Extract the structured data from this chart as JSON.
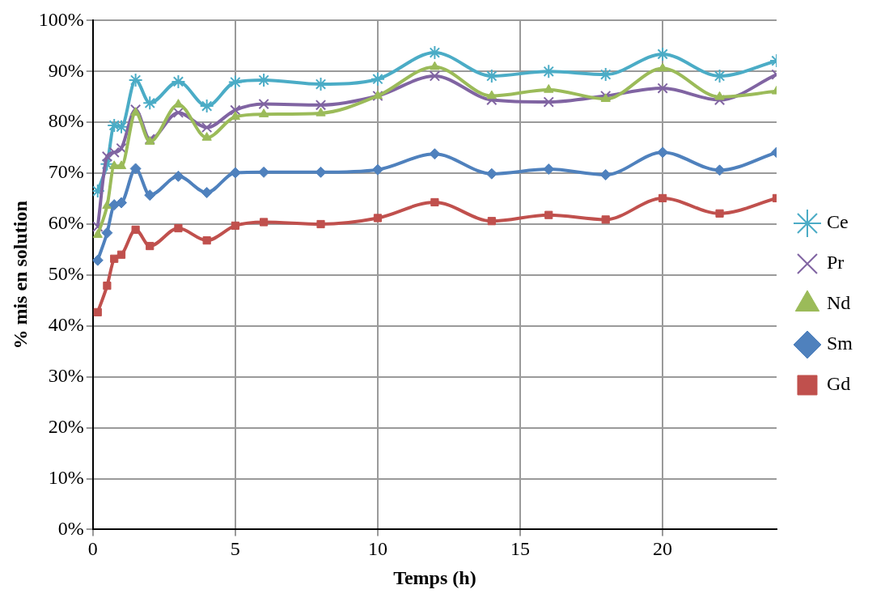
{
  "chart_data": {
    "type": "line",
    "xlabel": "Temps (h)",
    "ylabel": "% mis en solution",
    "x": [
      0.17,
      0.5,
      0.75,
      1,
      1.5,
      2,
      3,
      4,
      5,
      6,
      8,
      10,
      12,
      14,
      16,
      18,
      20,
      22,
      24
    ],
    "xlim": [
      0,
      24
    ],
    "xticks": [
      0,
      5,
      10,
      15,
      20
    ],
    "ylim": [
      0,
      100
    ],
    "yticks": [
      {
        "value": 0,
        "label": "0%"
      },
      {
        "value": 10,
        "label": "10%"
      },
      {
        "value": 20,
        "label": "20%"
      },
      {
        "value": 30,
        "label": "30%"
      },
      {
        "value": 40,
        "label": "40%"
      },
      {
        "value": 50,
        "label": "50%"
      },
      {
        "value": 60,
        "label": "60%"
      },
      {
        "value": 70,
        "label": "70%"
      },
      {
        "value": 80,
        "label": "80%"
      },
      {
        "value": 90,
        "label": "90%"
      },
      {
        "value": 100,
        "label": "100%"
      }
    ],
    "grid": true,
    "legend": "right",
    "series": [
      {
        "name": "Ce",
        "color": "#4bacc6",
        "marker": "cross",
        "values": [
          66.5,
          71.8,
          79.4,
          79.1,
          88.3,
          83.8,
          88.0,
          83.2,
          87.9,
          88.3,
          87.5,
          88.5,
          93.7,
          89.1,
          90.0,
          89.4,
          93.4,
          89.1,
          92.1
        ]
      },
      {
        "name": "Pr",
        "color": "#8064a2",
        "marker": "cross",
        "values": [
          59.5,
          73.3,
          74.1,
          74.9,
          82.5,
          76.7,
          81.9,
          79.0,
          82.4,
          83.6,
          83.4,
          85.2,
          89.1,
          84.4,
          84.0,
          85.2,
          86.7,
          84.4,
          89.4
        ]
      },
      {
        "name": "Nd",
        "color": "#9bbb59",
        "marker": "triangle",
        "values": [
          57.9,
          63.6,
          71.4,
          71.4,
          81.9,
          76.2,
          83.5,
          77.0,
          81.1,
          81.6,
          81.8,
          85.2,
          90.9,
          85.2,
          86.4,
          84.6,
          90.6,
          85.0,
          86.1
        ]
      },
      {
        "name": "Sm",
        "color": "#4f81bd",
        "marker": "diamond",
        "values": [
          52.9,
          58.3,
          63.8,
          64.2,
          70.9,
          65.7,
          69.4,
          66.2,
          70.1,
          70.2,
          70.2,
          70.7,
          73.8,
          69.9,
          70.8,
          69.7,
          74.1,
          70.6,
          74.1
        ]
      },
      {
        "name": "Gd",
        "color": "#c0504d",
        "marker": "square",
        "values": [
          42.7,
          47.9,
          53.2,
          54.0,
          58.9,
          55.7,
          59.2,
          56.8,
          59.7,
          60.4,
          60.0,
          61.2,
          64.3,
          60.6,
          61.8,
          60.9,
          65.1,
          62.1,
          65.1
        ]
      }
    ]
  }
}
